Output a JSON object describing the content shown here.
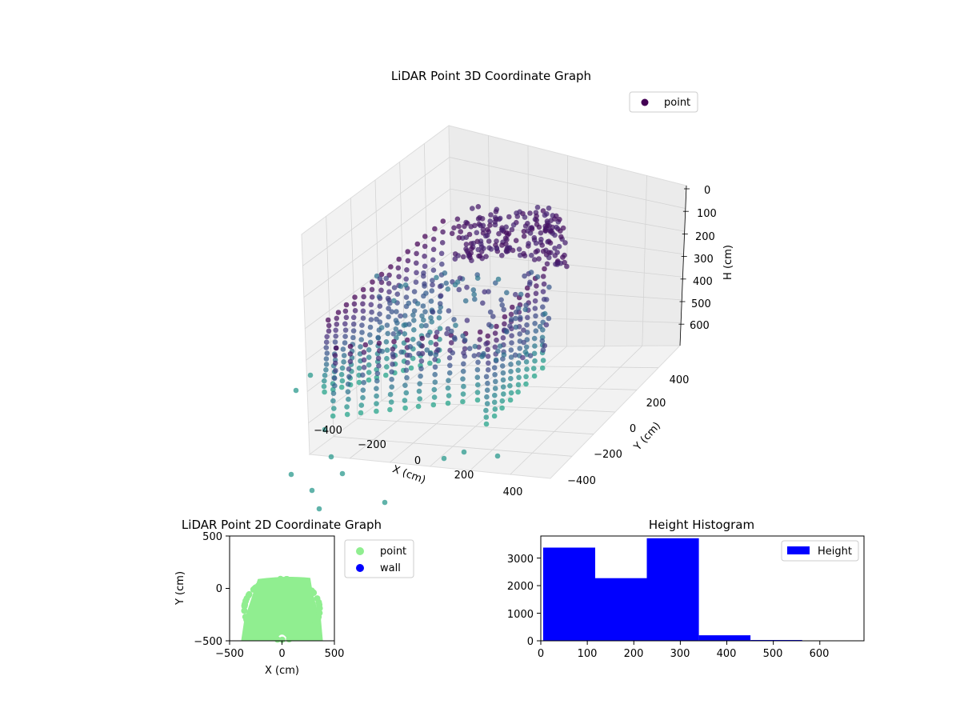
{
  "chart_data": [
    {
      "type": "scatter3d",
      "title": "LiDAR Point 3D Coordinate Graph",
      "xlabel": "X (cm)",
      "ylabel": "Y (cm)",
      "zlabel": "H (cm)",
      "x_ticks": [
        "−400",
        "−200",
        "0",
        "200",
        "400"
      ],
      "y_ticks": [
        "−400",
        "−200",
        "0",
        "200",
        "400"
      ],
      "z_ticks": [
        "0",
        "100",
        "200",
        "300",
        "400",
        "500",
        "600"
      ],
      "xlim": [
        -500,
        500
      ],
      "ylim": [
        -500,
        500
      ],
      "zlim": [
        0,
        700
      ],
      "z_inverted": true,
      "legend": [
        "point"
      ],
      "legend_position": "top-right",
      "colormap": "viridis",
      "grid": true
    },
    {
      "type": "scatter",
      "title": "LiDAR Point 2D Coordinate Graph",
      "xlabel": "X (cm)",
      "ylabel": "Y (cm)",
      "x_ticks": [
        "−500",
        "0",
        "500"
      ],
      "y_ticks": [
        "500",
        "0",
        "−500"
      ],
      "xlim": [
        -500,
        500
      ],
      "ylim": [
        -500,
        500
      ],
      "series": [
        {
          "name": "point",
          "color": "#90ee90"
        },
        {
          "name": "wall",
          "color": "#0000ff"
        }
      ],
      "legend_position": "outside-right"
    },
    {
      "type": "bar",
      "title": "Height Histogram",
      "x_ticks": [
        "0",
        "100",
        "200",
        "300",
        "400",
        "500",
        "600"
      ],
      "y_ticks": [
        "0",
        "1000",
        "2000",
        "3000"
      ],
      "xlim": [
        0,
        695
      ],
      "ylim": [
        0,
        3800
      ],
      "bins": [
        {
          "start": 5,
          "end": 117,
          "count": 3380
        },
        {
          "start": 117,
          "end": 228,
          "count": 2270
        },
        {
          "start": 228,
          "end": 340,
          "count": 3720
        },
        {
          "start": 340,
          "end": 451,
          "count": 200
        },
        {
          "start": 451,
          "end": 562,
          "count": 30
        },
        {
          "start": 562,
          "end": 674,
          "count": 8
        }
      ],
      "series": [
        {
          "name": "Height",
          "color": "#0000ff"
        }
      ],
      "legend_position": "top-right"
    }
  ]
}
